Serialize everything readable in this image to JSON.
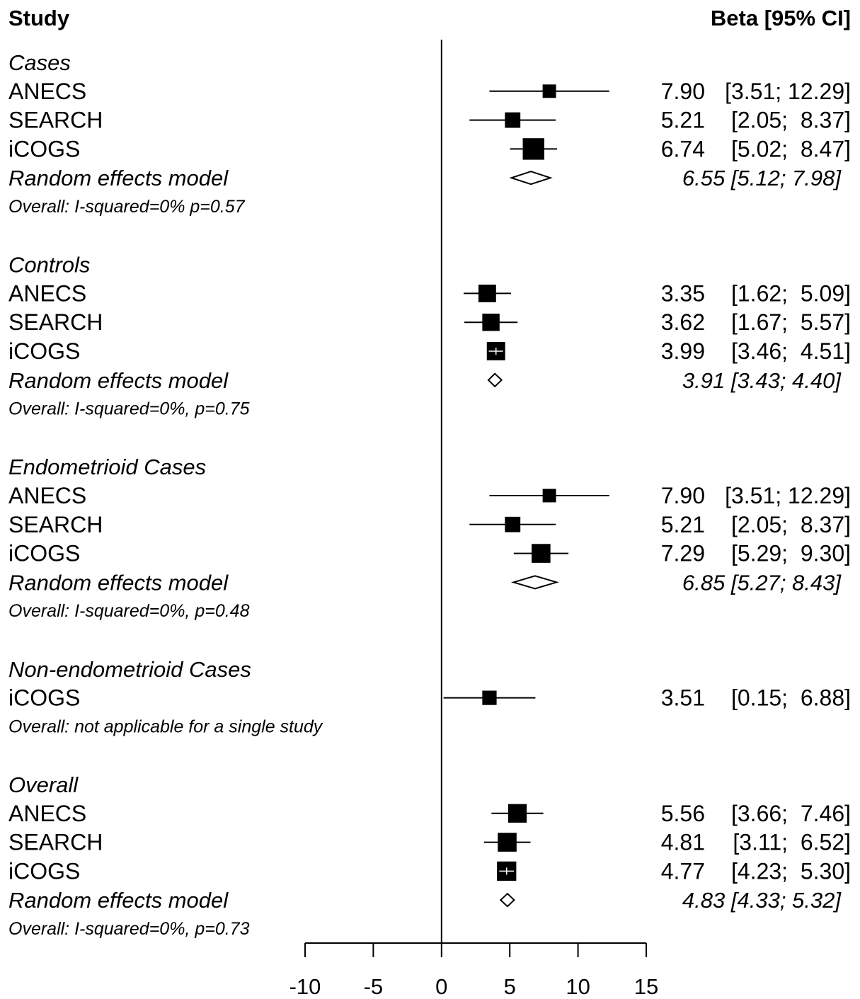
{
  "chart_data": {
    "type": "forest",
    "header": {
      "study": "Study",
      "effect": "Beta [95% CI]"
    },
    "xlim": [
      -10,
      15
    ],
    "ticks": [
      -10,
      -5,
      0,
      5,
      10,
      15
    ],
    "tick_labels": [
      "-10",
      "-5",
      "0",
      "5",
      "10",
      "15"
    ],
    "reference_line": 0,
    "groups": [
      {
        "name": "Cases",
        "studies": [
          {
            "study": "ANECS",
            "beta": 7.9,
            "lower": 3.51,
            "upper": 12.29,
            "weight": 0.1,
            "text": "7.90",
            "ci_text": "[3.51; 12.29]"
          },
          {
            "study": "SEARCH",
            "beta": 5.21,
            "lower": 2.05,
            "upper": 8.37,
            "weight": 0.2,
            "text": "5.21",
            "ci_text": "[2.05;  8.37]"
          },
          {
            "study": "iCOGS",
            "beta": 6.74,
            "lower": 5.02,
            "upper": 8.47,
            "weight": 0.7,
            "text": "6.74",
            "ci_text": "[5.02;  8.47]"
          }
        ],
        "pooled": {
          "label": "Random effects model",
          "beta": 6.55,
          "lower": 5.12,
          "upper": 7.98,
          "text": "6.55 [5.12; 7.98]"
        },
        "heterogeneity": "Overall: I-squared=0% p=0.57"
      },
      {
        "name": "Controls",
        "studies": [
          {
            "study": "ANECS",
            "beta": 3.35,
            "lower": 1.62,
            "upper": 5.09,
            "weight": 0.34,
            "text": "3.35",
            "ci_text": "[1.62;  5.09]"
          },
          {
            "study": "SEARCH",
            "beta": 3.62,
            "lower": 1.67,
            "upper": 5.57,
            "weight": 0.32,
            "text": "3.62",
            "ci_text": "[1.67;  5.57]"
          },
          {
            "study": "iCOGS",
            "beta": 3.99,
            "lower": 3.46,
            "upper": 4.51,
            "weight": 0.4,
            "text": "3.99",
            "ci_text": "[3.46;  4.51]"
          }
        ],
        "pooled": {
          "label": "Random effects model",
          "beta": 3.91,
          "lower": 3.43,
          "upper": 4.4,
          "text": "3.91 [3.43; 4.40]"
        },
        "heterogeneity": "Overall: I-squared=0%, p=0.75"
      },
      {
        "name": "Endometrioid Cases",
        "studies": [
          {
            "study": "ANECS",
            "beta": 7.9,
            "lower": 3.51,
            "upper": 12.29,
            "weight": 0.1,
            "text": "7.90",
            "ci_text": "[3.51; 12.29]"
          },
          {
            "study": "SEARCH",
            "beta": 5.21,
            "lower": 2.05,
            "upper": 8.37,
            "weight": 0.2,
            "text": "5.21",
            "ci_text": "[2.05;  8.37]"
          },
          {
            "study": "iCOGS",
            "beta": 7.29,
            "lower": 5.29,
            "upper": 9.3,
            "weight": 0.44,
            "text": "7.29",
            "ci_text": "[5.29;  9.30]"
          }
        ],
        "pooled": {
          "label": "Random effects model",
          "beta": 6.85,
          "lower": 5.27,
          "upper": 8.43,
          "text": "6.85 [5.27; 8.43]"
        },
        "heterogeneity": "Overall: I-squared=0%, p=0.48"
      },
      {
        "name": "Non-endometrioid Cases",
        "studies": [
          {
            "study": "iCOGS",
            "beta": 3.51,
            "lower": 0.15,
            "upper": 6.88,
            "weight": 0.14,
            "text": "3.51",
            "ci_text": "[0.15;  6.88]"
          }
        ],
        "pooled": null,
        "heterogeneity": "Overall: not applicable for a single study"
      },
      {
        "name": "Overall",
        "studies": [
          {
            "study": "ANECS",
            "beta": 5.56,
            "lower": 3.66,
            "upper": 7.46,
            "weight": 0.42,
            "text": "5.56",
            "ci_text": "[3.66;  7.46]"
          },
          {
            "study": "SEARCH",
            "beta": 4.81,
            "lower": 3.11,
            "upper": 6.52,
            "weight": 0.44,
            "text": "4.81",
            "ci_text": "[3.11;  6.52]"
          },
          {
            "study": "iCOGS",
            "beta": 4.77,
            "lower": 4.23,
            "upper": 5.3,
            "weight": 0.48,
            "text": "4.77",
            "ci_text": "[4.23;  5.30]"
          }
        ],
        "pooled": {
          "label": "Random effects model",
          "beta": 4.83,
          "lower": 4.33,
          "upper": 5.32,
          "text": "4.83 [4.33; 5.32]"
        },
        "heterogeneity": "Overall: I-squared=0%, p=0.73"
      }
    ]
  }
}
